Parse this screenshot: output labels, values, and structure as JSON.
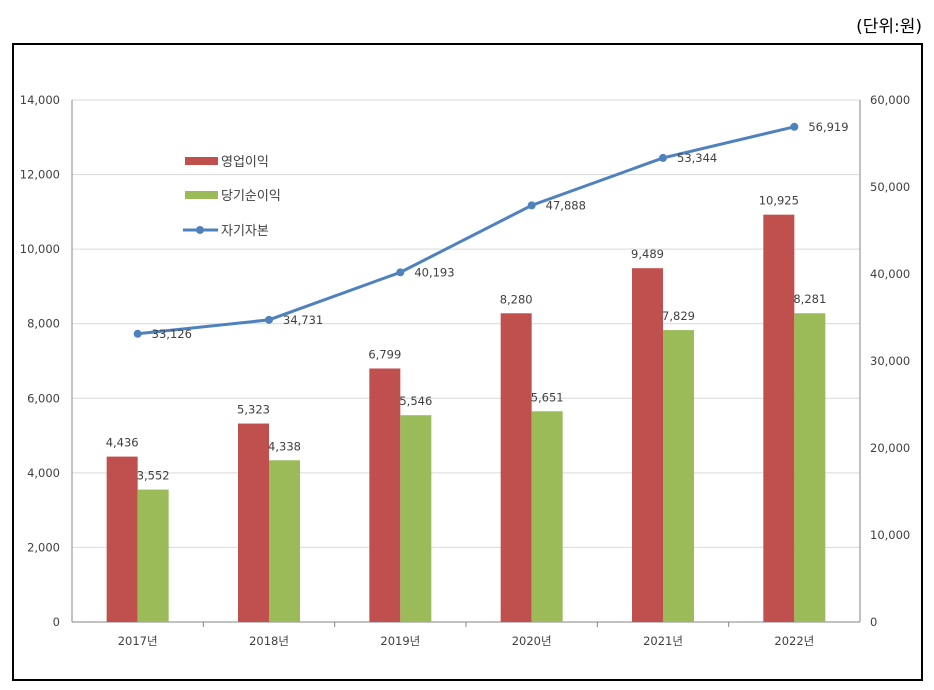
{
  "unit_note": "(단위:원)",
  "chart_data": {
    "type": "bar+line",
    "categories": [
      "2017년",
      "2018년",
      "2019년",
      "2020년",
      "2021년",
      "2022년"
    ],
    "series": [
      {
        "name": "영업이익",
        "type": "bar",
        "axis": "left",
        "color": "#c0504d",
        "values": [
          4436,
          5323,
          6799,
          8280,
          9489,
          10925
        ],
        "labels": [
          "4,436",
          "5,323",
          "6,799",
          "8,280",
          "9,489",
          "10,925"
        ]
      },
      {
        "name": "당기순이익",
        "type": "bar",
        "axis": "left",
        "color": "#9bbb59",
        "values": [
          3552,
          4338,
          5546,
          5651,
          7829,
          8281
        ],
        "labels": [
          "3,552",
          "4,338",
          "5,546",
          "5,651",
          "7,829",
          "8,281"
        ]
      },
      {
        "name": "자기자본",
        "type": "line",
        "axis": "right",
        "color": "#4f81bd",
        "values": [
          33126,
          34731,
          40193,
          47888,
          53344,
          56919
        ],
        "labels": [
          "33,126",
          "34,731",
          "40,193",
          "47,888",
          "53,344",
          "56,919"
        ]
      }
    ],
    "left_axis": {
      "range": [
        0,
        14000
      ],
      "ticks": [
        "0",
        "2,000",
        "4,000",
        "6,000",
        "8,000",
        "10,000",
        "12,000",
        "14,000"
      ]
    },
    "right_axis": {
      "range": [
        0,
        60000
      ],
      "ticks": [
        "0",
        "10,000",
        "20,000",
        "30,000",
        "40,000",
        "50,000",
        "60,000"
      ]
    },
    "grid": true,
    "legend_position": "top-left inside"
  }
}
